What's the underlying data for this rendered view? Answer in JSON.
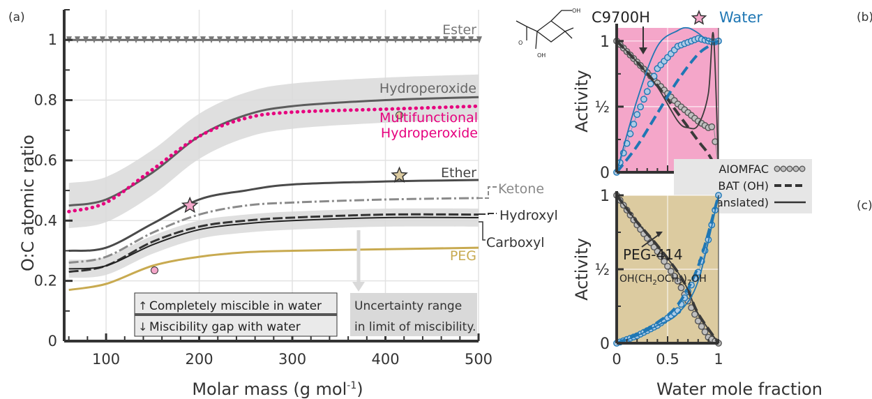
{
  "panel_a": {
    "tag": "(a)",
    "xlabel": "Molar mass (g mol",
    "xlabel_sup": "-1",
    "xlabel_end": ")",
    "ylabel": "O:C atomic ratio",
    "curve_labels": {
      "ester": "Ester",
      "hydroperoxide": "Hydroperoxide",
      "multi_1": "Multifunctional",
      "multi_2": "Hydroperoxide",
      "ether": "Ether",
      "ketone": "Ketone",
      "hydroxyl": "Hydroxyl",
      "carboxyl": "Carboxyl",
      "peg": "PEG"
    },
    "legend": {
      "above": "Completely miscible in water",
      "below": "Miscibility gap with water"
    },
    "uncertainty_1": "Uncertainty range",
    "uncertainty_2": "in limit of miscibility."
  },
  "panel_b": {
    "tag": "(b)",
    "ylabel": "Activity",
    "compound": "C9700H",
    "water_label": "Water",
    "legend": {
      "aiomfac": "AIOMFAC",
      "bat_oh": "BAT (OH)",
      "bat_translated": "BAT (translated)"
    }
  },
  "panel_c": {
    "tag": "(c)",
    "ylabel": "Activity",
    "xlabel": "Water mole fraction",
    "compound": "PEG-414",
    "formula": "OH(CH",
    "formula_2": "OCH",
    "formula_3": ")",
    "formula_4": "OH",
    "sub_2": "2",
    "sub_7": "7"
  },
  "colors": {
    "grey_line": "#5a5a5a",
    "magenta": "#e6007e",
    "peg_gold": "#c8aa50",
    "band": "#d9d9d9",
    "water_blue": "#1f77b4",
    "pink_bg": "#f4a6c9",
    "tan_bg": "#dccba0"
  },
  "chart_data": [
    {
      "type": "line",
      "panel": "a",
      "xlabel": "Molar mass (g mol-1)",
      "ylabel": "O:C atomic ratio",
      "xlim": [
        55,
        500
      ],
      "ylim": [
        0,
        1.1
      ],
      "x_ticks": [
        100,
        200,
        300,
        400,
        500
      ],
      "y_ticks": [
        0,
        0.2,
        0.4,
        0.6,
        0.8,
        1
      ],
      "grid": true,
      "series": [
        {
          "name": "Ester",
          "x": [
            55,
            500
          ],
          "y": [
            1.0,
            1.0
          ]
        },
        {
          "name": "Hydroperoxide",
          "x": [
            60,
            100,
            150,
            200,
            250,
            300,
            400,
            500
          ],
          "y": [
            0.45,
            0.47,
            0.56,
            0.68,
            0.75,
            0.78,
            0.8,
            0.81
          ]
        },
        {
          "name": "Multifunctional Hydroperoxide",
          "x": [
            60,
            100,
            150,
            200,
            250,
            300,
            400,
            500
          ],
          "y": [
            0.43,
            0.46,
            0.57,
            0.68,
            0.74,
            0.76,
            0.77,
            0.78
          ]
        },
        {
          "name": "Ether",
          "x": [
            60,
            100,
            150,
            200,
            250,
            300,
            400,
            500
          ],
          "y": [
            0.3,
            0.31,
            0.39,
            0.47,
            0.5,
            0.52,
            0.53,
            0.535
          ]
        },
        {
          "name": "Ketone",
          "x": [
            60,
            100,
            150,
            200,
            250,
            300,
            400,
            500
          ],
          "y": [
            0.26,
            0.28,
            0.36,
            0.42,
            0.45,
            0.46,
            0.47,
            0.475
          ]
        },
        {
          "name": "Hydroxyl",
          "x": [
            60,
            100,
            150,
            200,
            250,
            300,
            400,
            500
          ],
          "y": [
            0.23,
            0.25,
            0.33,
            0.38,
            0.4,
            0.41,
            0.42,
            0.42
          ]
        },
        {
          "name": "Carboxyl",
          "x": [
            60,
            100,
            150,
            200,
            250,
            300,
            400,
            500
          ],
          "y": [
            0.24,
            0.25,
            0.32,
            0.37,
            0.39,
            0.4,
            0.41,
            0.41
          ]
        },
        {
          "name": "PEG",
          "x": [
            60,
            100,
            150,
            200,
            250,
            300,
            400,
            500
          ],
          "y": [
            0.17,
            0.19,
            0.25,
            0.28,
            0.295,
            0.3,
            0.305,
            0.31
          ]
        }
      ],
      "markers": [
        {
          "shape": "star",
          "color": "pink",
          "x": 190,
          "y": 0.45
        },
        {
          "shape": "star",
          "color": "tan",
          "x": 415,
          "y": 0.55
        },
        {
          "shape": "circle",
          "color": "pink",
          "x": 152,
          "y": 0.235
        },
        {
          "shape": "circle",
          "color": "tan",
          "x": 415,
          "y": 0.75
        }
      ]
    },
    {
      "type": "line",
      "panel": "b",
      "ylabel": "Activity",
      "xlim": [
        0,
        1
      ],
      "ylim": [
        0,
        1.1
      ],
      "y_ticks": [
        0,
        0.5,
        1
      ],
      "y_ticklabels": [
        "0",
        "½",
        "1"
      ],
      "series": [
        {
          "name": "AIOMFAC (organic)",
          "x": [
            0,
            0.2,
            0.4,
            0.6,
            0.8,
            0.9,
            0.95,
            1.0
          ],
          "y": [
            1.0,
            0.84,
            0.68,
            0.52,
            0.39,
            0.34,
            0.35,
            0.0
          ]
        },
        {
          "name": "AIOMFAC (water)",
          "x": [
            0,
            0.2,
            0.4,
            0.6,
            0.8,
            0.95,
            1.0
          ],
          "y": [
            0.0,
            0.44,
            0.79,
            0.96,
            1.02,
            0.99,
            1.0
          ]
        },
        {
          "name": "BAT (OH) (organic)",
          "x": [
            0,
            0.2,
            0.4,
            0.6,
            0.8,
            0.9,
            1.0
          ],
          "y": [
            1.0,
            0.84,
            0.66,
            0.45,
            0.24,
            0.14,
            0.0
          ]
        },
        {
          "name": "BAT (OH) (water)",
          "x": [
            0,
            0.2,
            0.4,
            0.6,
            0.8,
            0.95,
            1.0
          ],
          "y": [
            0.0,
            0.2,
            0.45,
            0.7,
            0.9,
            0.98,
            1.0
          ]
        },
        {
          "name": "BAT (translated) (organic)",
          "x": [
            0,
            0.2,
            0.4,
            0.6,
            0.7,
            0.8,
            0.9,
            0.95,
            1.0
          ],
          "y": [
            1.0,
            0.84,
            0.65,
            0.39,
            0.34,
            0.36,
            0.6,
            1.05,
            0.0
          ]
        },
        {
          "name": "BAT (translated) (water)",
          "x": [
            0,
            0.2,
            0.4,
            0.6,
            0.7,
            0.8,
            0.9,
            1.0
          ],
          "y": [
            0.0,
            0.55,
            0.96,
            1.08,
            1.1,
            1.06,
            1.0,
            1.0
          ]
        }
      ]
    },
    {
      "type": "line",
      "panel": "c",
      "xlabel": "Water mole fraction",
      "ylabel": "Activity",
      "xlim": [
        0,
        1
      ],
      "ylim": [
        0,
        1.0
      ],
      "x_ticks": [
        0,
        0.5,
        1
      ],
      "y_ticks": [
        0,
        0.5,
        1
      ],
      "y_ticklabels": [
        "0",
        "½",
        "1"
      ],
      "series": [
        {
          "name": "AIOMFAC (organic)",
          "x": [
            0,
            0.2,
            0.4,
            0.6,
            0.8,
            0.9,
            1.0
          ],
          "y": [
            1.0,
            0.8,
            0.62,
            0.42,
            0.15,
            0.04,
            0.0
          ]
        },
        {
          "name": "AIOMFAC (water)",
          "x": [
            0,
            0.2,
            0.4,
            0.6,
            0.8,
            0.9,
            1.0
          ],
          "y": [
            0.0,
            0.05,
            0.12,
            0.22,
            0.48,
            0.7,
            1.0
          ]
        },
        {
          "name": "BAT (OH) (organic)",
          "x": [
            0,
            0.2,
            0.4,
            0.6,
            0.7,
            0.8,
            1.0
          ],
          "y": [
            1.0,
            0.82,
            0.66,
            0.48,
            0.36,
            0.2,
            0.0
          ]
        },
        {
          "name": "BAT (OH) (water)",
          "x": [
            0,
            0.2,
            0.4,
            0.6,
            0.8,
            1.0
          ],
          "y": [
            0.0,
            0.06,
            0.14,
            0.26,
            0.52,
            1.0
          ]
        },
        {
          "name": "BAT (translated) (organic)",
          "x": [
            0,
            0.2,
            0.4,
            0.6,
            0.7,
            0.8,
            1.0
          ],
          "y": [
            1.0,
            0.82,
            0.66,
            0.48,
            0.36,
            0.2,
            0.0
          ]
        },
        {
          "name": "BAT (translated) (water)",
          "x": [
            0,
            0.2,
            0.4,
            0.6,
            0.8,
            1.0
          ],
          "y": [
            0.0,
            0.05,
            0.12,
            0.2,
            0.42,
            1.0
          ]
        }
      ]
    }
  ]
}
